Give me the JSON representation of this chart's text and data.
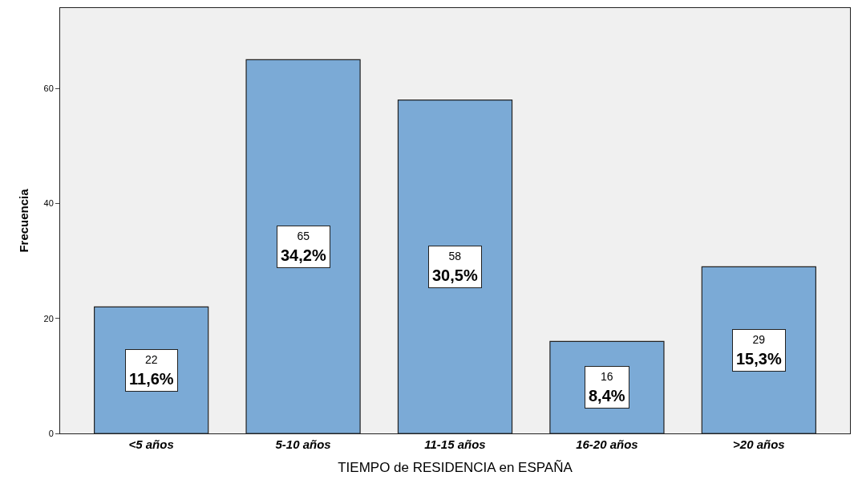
{
  "chart_data": {
    "type": "bar",
    "xlabel": "TIEMPO de RESIDENCIA en ESPAÑA",
    "ylabel": "Frecuencia",
    "categories": [
      "<5 años",
      "5-10 años",
      "11-15 años",
      "16-20 años",
      ">20 años"
    ],
    "values": [
      22,
      65,
      58,
      16,
      29
    ],
    "value_labels": [
      "22\n11,6%",
      "65\n34,2%",
      "58\n30,5%",
      "16\n8,4%",
      "29\n15,3%"
    ],
    "color": "#7baad6",
    "ylim": [
      0,
      74
    ],
    "yticks": [
      0,
      20,
      40,
      60
    ],
    "grid": false,
    "legend": false
  }
}
